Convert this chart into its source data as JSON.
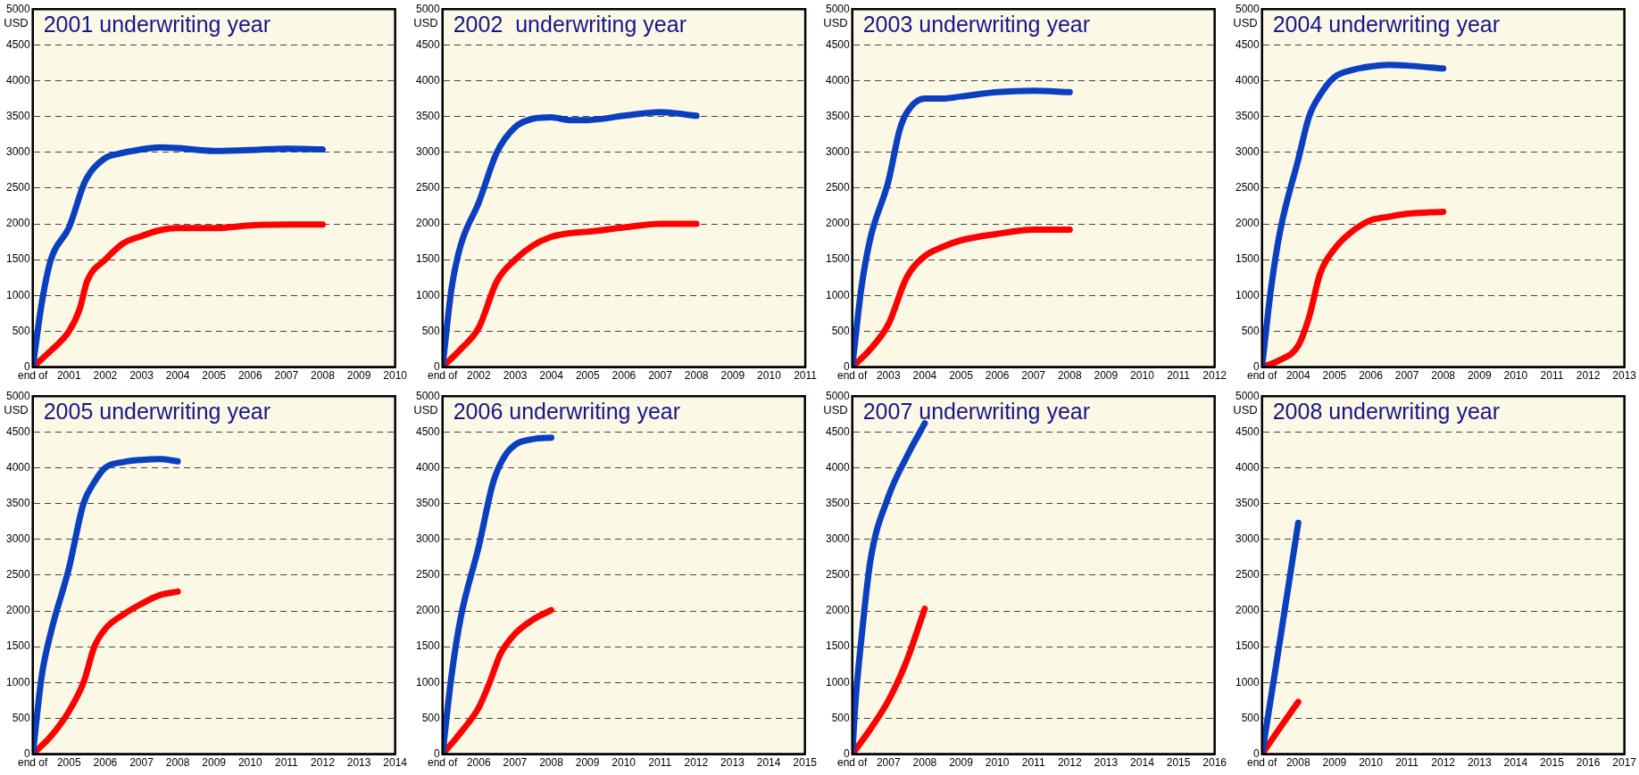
{
  "chart_data": [
    {
      "type": "line",
      "title": "2001 underwriting year",
      "ylabel": "USD",
      "xlim": [
        2000,
        2010
      ],
      "xticks": [
        {
          "value": 2000,
          "label": "end of"
        },
        2001,
        2002,
        2003,
        2004,
        2005,
        2006,
        2007,
        2008,
        2009,
        2010
      ],
      "ylim": [
        0,
        5000
      ],
      "yticks": [
        0,
        500,
        1000,
        1500,
        2000,
        2500,
        3000,
        3500,
        4000,
        4500,
        5000
      ],
      "grid": "y",
      "series": [
        {
          "color": "#0a3fbf",
          "x": [
            2000,
            2000.25,
            2000.5,
            2001,
            2001.45,
            2002,
            2002.3,
            2003,
            2003.5,
            2004,
            2005,
            2006,
            2007,
            2008
          ],
          "values": [
            0,
            900,
            1500,
            1950,
            2600,
            2920,
            2970,
            3040,
            3070,
            3060,
            3020,
            3030,
            3050,
            3040
          ]
        },
        {
          "color": "#ff0000",
          "x": [
            2000,
            2000.5,
            2001,
            2001.3,
            2001.5,
            2002,
            2002.5,
            2003,
            2003.5,
            2004,
            2005,
            2006,
            2007,
            2008
          ],
          "values": [
            0,
            230,
            500,
            820,
            1200,
            1500,
            1730,
            1830,
            1910,
            1940,
            1940,
            1980,
            1990,
            1990
          ]
        }
      ]
    },
    {
      "type": "line",
      "title": "2002  underwriting year",
      "ylabel": "USD",
      "xlim": [
        2001,
        2011
      ],
      "xticks": [
        {
          "value": 2001,
          "label": "end of"
        },
        2002,
        2003,
        2004,
        2005,
        2006,
        2007,
        2008,
        2009,
        2010,
        2011
      ],
      "ylim": [
        0,
        5000
      ],
      "yticks": [
        0,
        500,
        1000,
        1500,
        2000,
        2500,
        3000,
        3500,
        4000,
        4500,
        5000
      ],
      "grid": "y",
      "series": [
        {
          "color": "#0a3fbf",
          "x": [
            2001,
            2001.25,
            2001.5,
            2002,
            2002.5,
            2003,
            2003.5,
            2004,
            2004.5,
            2005,
            2006,
            2007,
            2008
          ],
          "values": [
            0,
            1100,
            1700,
            2300,
            3000,
            3350,
            3470,
            3490,
            3450,
            3450,
            3510,
            3560,
            3510
          ]
        },
        {
          "color": "#ff0000",
          "x": [
            2001,
            2001.5,
            2002,
            2002.5,
            2003,
            2003.5,
            2004,
            2004.5,
            2005,
            2006,
            2007,
            2008
          ],
          "values": [
            0,
            250,
            550,
            1200,
            1500,
            1700,
            1820,
            1870,
            1890,
            1950,
            2000,
            2000
          ]
        }
      ]
    },
    {
      "type": "line",
      "title": "2003 underwriting year",
      "ylabel": "USD",
      "xlim": [
        2002,
        2012
      ],
      "xticks": [
        {
          "value": 2002,
          "label": "end of"
        },
        2003,
        2004,
        2005,
        2006,
        2007,
        2008,
        2009,
        2010,
        2011,
        2012
      ],
      "ylim": [
        0,
        5000
      ],
      "yticks": [
        0,
        500,
        1000,
        1500,
        2000,
        2500,
        3000,
        3500,
        4000,
        4500,
        5000
      ],
      "grid": "y",
      "series": [
        {
          "color": "#0a3fbf",
          "x": [
            2002,
            2002.25,
            2002.5,
            2003,
            2003.3,
            2003.5,
            2004,
            2004.5,
            2005,
            2006,
            2007,
            2008
          ],
          "values": [
            0,
            1100,
            1800,
            2600,
            3300,
            3550,
            3750,
            3750,
            3780,
            3840,
            3860,
            3840
          ]
        },
        {
          "color": "#ff0000",
          "x": [
            2002,
            2002.5,
            2003,
            2003.5,
            2004,
            2004.5,
            2005,
            2006,
            2007,
            2008
          ],
          "values": [
            0,
            250,
            600,
            1250,
            1550,
            1680,
            1770,
            1860,
            1920,
            1920
          ]
        }
      ]
    },
    {
      "type": "line",
      "title": "2004 underwriting year",
      "ylabel": "USD",
      "xlim": [
        2003,
        2013
      ],
      "xticks": [
        {
          "value": 2003,
          "label": "end of"
        },
        2004,
        2005,
        2006,
        2007,
        2008,
        2009,
        2010,
        2011,
        2012,
        2013
      ],
      "ylim": [
        0,
        5000
      ],
      "yticks": [
        0,
        500,
        1000,
        1500,
        2000,
        2500,
        3000,
        3500,
        4000,
        4500,
        5000
      ],
      "grid": "y",
      "series": [
        {
          "color": "#0a3fbf",
          "x": [
            2003,
            2003.25,
            2003.5,
            2004,
            2004.3,
            2004.6,
            2005,
            2005.5,
            2006,
            2006.5,
            2007,
            2008
          ],
          "values": [
            0,
            1100,
            1900,
            2900,
            3500,
            3800,
            4050,
            4150,
            4200,
            4220,
            4210,
            4170
          ]
        },
        {
          "color": "#ff0000",
          "x": [
            2003,
            2003.5,
            2004,
            2004.3,
            2004.6,
            2005,
            2005.5,
            2006,
            2006.5,
            2007,
            2008
          ],
          "values": [
            0,
            100,
            300,
            700,
            1300,
            1650,
            1900,
            2050,
            2100,
            2140,
            2170
          ]
        }
      ]
    },
    {
      "type": "line",
      "title": "2005 underwriting year",
      "ylabel": "USD",
      "xlim": [
        2004,
        2014
      ],
      "xticks": [
        {
          "value": 2004,
          "label": "end of"
        },
        2005,
        2006,
        2007,
        2008,
        2009,
        2010,
        2011,
        2012,
        2013,
        2014
      ],
      "ylim": [
        0,
        5000
      ],
      "yticks": [
        0,
        500,
        1000,
        1500,
        2000,
        2500,
        3000,
        3500,
        4000,
        4500,
        5000
      ],
      "grid": "y",
      "series": [
        {
          "color": "#0a3fbf",
          "x": [
            2004,
            2004.25,
            2004.5,
            2005,
            2005.4,
            2005.7,
            2006,
            2006.5,
            2007,
            2007.5,
            2008
          ],
          "values": [
            0,
            1100,
            1700,
            2600,
            3500,
            3800,
            4000,
            4080,
            4110,
            4120,
            4090
          ]
        },
        {
          "color": "#ff0000",
          "x": [
            2004,
            2004.5,
            2005,
            2005.4,
            2005.7,
            2006,
            2006.5,
            2007,
            2007.5,
            2008
          ],
          "values": [
            0,
            250,
            600,
            1000,
            1500,
            1750,
            1950,
            2100,
            2220,
            2270
          ]
        }
      ]
    },
    {
      "type": "line",
      "title": "2006 underwriting year",
      "ylabel": "USD",
      "xlim": [
        2005,
        2015
      ],
      "xticks": [
        {
          "value": 2005,
          "label": "end of"
        },
        2006,
        2007,
        2008,
        2009,
        2010,
        2011,
        2012,
        2013,
        2014,
        2015
      ],
      "ylim": [
        0,
        5000
      ],
      "yticks": [
        0,
        500,
        1000,
        1500,
        2000,
        2500,
        3000,
        3500,
        4000,
        4500,
        5000
      ],
      "grid": "y",
      "series": [
        {
          "color": "#0a3fbf",
          "x": [
            2005,
            2005.25,
            2005.5,
            2006,
            2006.4,
            2006.7,
            2007,
            2007.5,
            2008
          ],
          "values": [
            0,
            1100,
            1900,
            2900,
            3800,
            4150,
            4320,
            4400,
            4420
          ]
        },
        {
          "color": "#ff0000",
          "x": [
            2005,
            2005.5,
            2006,
            2006.3,
            2006.6,
            2007,
            2007.5,
            2008
          ],
          "values": [
            0,
            300,
            650,
            1000,
            1400,
            1680,
            1880,
            2010
          ]
        }
      ]
    },
    {
      "type": "line",
      "title": "2007 underwriting year",
      "ylabel": "USD",
      "xlim": [
        2006,
        2016
      ],
      "xticks": [
        {
          "value": 2006,
          "label": "end of"
        },
        2007,
        2008,
        2009,
        2010,
        2011,
        2012,
        2013,
        2014,
        2015,
        2016
      ],
      "ylim": [
        0,
        5000
      ],
      "yticks": [
        0,
        500,
        1000,
        1500,
        2000,
        2500,
        3000,
        3500,
        4000,
        4500,
        5000
      ],
      "grid": "y",
      "series": [
        {
          "color": "#0a3fbf",
          "x": [
            2006,
            2006.1,
            2006.25,
            2006.5,
            2007,
            2007.5,
            2008
          ],
          "values": [
            0,
            800,
            1600,
            2700,
            3600,
            4150,
            4620
          ]
        },
        {
          "color": "#ff0000",
          "x": [
            2006,
            2006.5,
            2007,
            2007.5,
            2008
          ],
          "values": [
            0,
            350,
            750,
            1300,
            2030
          ]
        }
      ]
    },
    {
      "type": "line",
      "title": "2008 underwriting year",
      "ylabel": "USD",
      "xlim": [
        2007,
        2017
      ],
      "xticks": [
        {
          "value": 2007,
          "label": "end of"
        },
        2008,
        2009,
        2010,
        2011,
        2012,
        2013,
        2014,
        2015,
        2016,
        2017
      ],
      "ylim": [
        0,
        5000
      ],
      "yticks": [
        0,
        500,
        1000,
        1500,
        2000,
        2500,
        3000,
        3500,
        4000,
        4500,
        5000
      ],
      "grid": "y",
      "series": [
        {
          "color": "#0a3fbf",
          "x": [
            2007,
            2007.5,
            2008
          ],
          "values": [
            0,
            1600,
            3230
          ]
        },
        {
          "color": "#ff0000",
          "x": [
            2007,
            2007.5,
            2008
          ],
          "values": [
            0,
            370,
            730
          ]
        }
      ]
    }
  ]
}
